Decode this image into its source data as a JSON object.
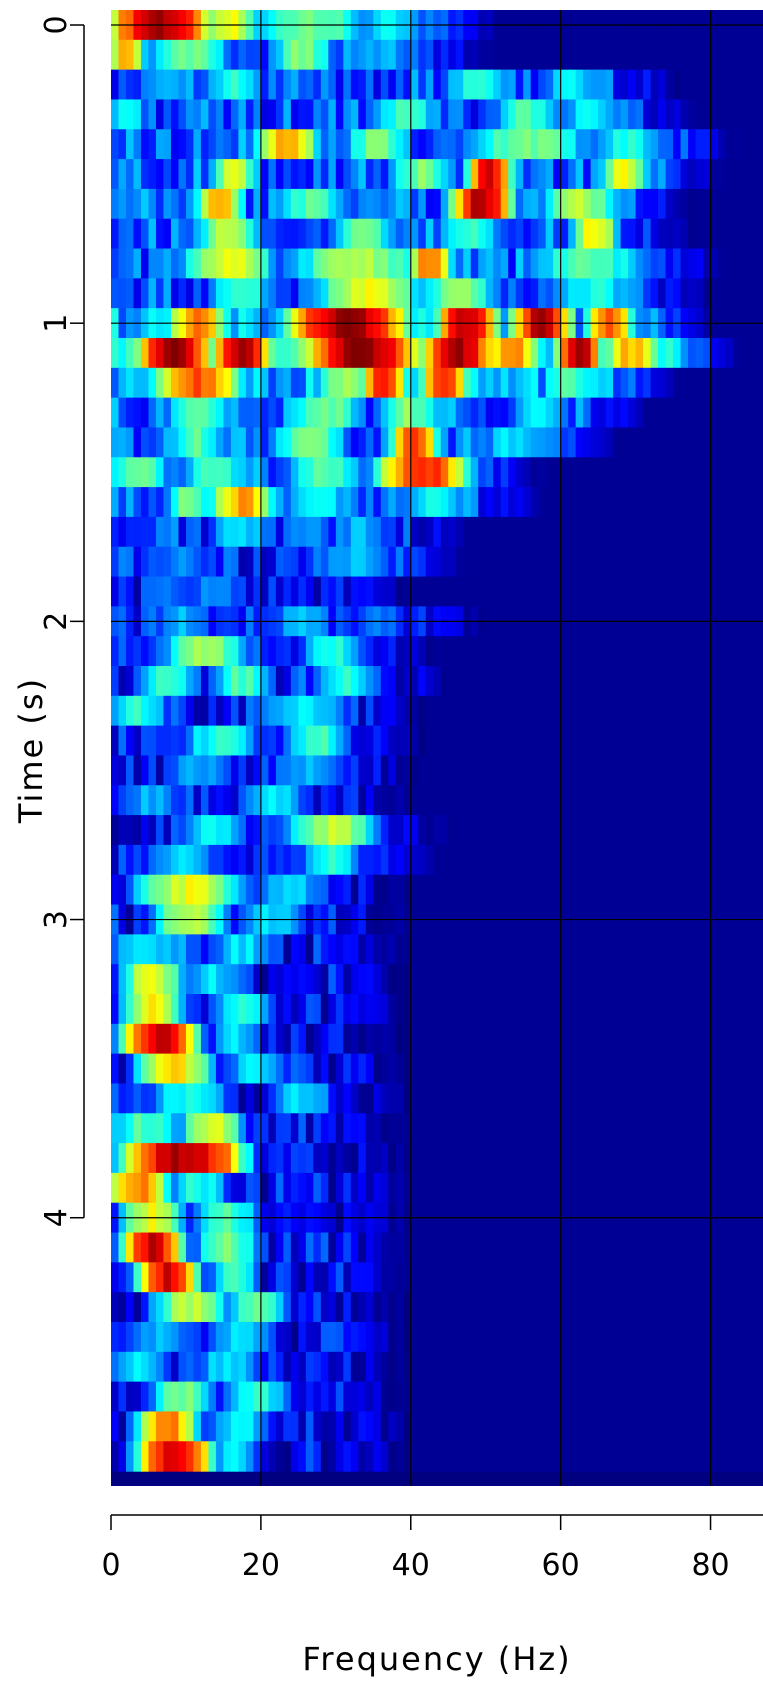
{
  "chart_data": {
    "type": "heatmap",
    "title": "",
    "xlabel": "Frequency (Hz)",
    "ylabel": "Time (s)",
    "xlim": [
      0,
      87
    ],
    "ylim": [
      0,
      4.95
    ],
    "y_inverted": true,
    "x_ticks": [
      0,
      20,
      40,
      60,
      80
    ],
    "y_ticks": [
      0,
      1,
      2,
      3,
      4
    ],
    "grid": true,
    "colormap": "jet",
    "colorscale_range": [
      0,
      1
    ],
    "colors": {
      "background": "#000080",
      "grid": "#000000"
    },
    "freq_bin_hz": 1,
    "time_rows": [
      {
        "t": 0.05,
        "peaks": [
          [
            0,
            12,
            0.97
          ],
          [
            13,
            18,
            0.6
          ],
          [
            20,
            32,
            0.5
          ],
          [
            33,
            40,
            0.35
          ]
        ],
        "base": 0.25
      },
      {
        "t": 0.15,
        "peaks": [
          [
            0,
            3,
            0.7
          ],
          [
            6,
            14,
            0.5
          ],
          [
            22,
            28,
            0.5
          ],
          [
            30,
            40,
            0.3
          ]
        ],
        "base": 0.2
      },
      {
        "t": 0.25,
        "peaks": [
          [
            4,
            10,
            0.3
          ],
          [
            14,
            18,
            0.4
          ],
          [
            45,
            52,
            0.4
          ],
          [
            58,
            64,
            0.35
          ]
        ],
        "base": 0.2
      },
      {
        "t": 0.35,
        "peaks": [
          [
            0,
            3,
            0.4
          ],
          [
            36,
            42,
            0.45
          ],
          [
            52,
            58,
            0.45
          ],
          [
            60,
            66,
            0.35
          ]
        ],
        "base": 0.2
      },
      {
        "t": 0.45,
        "peaks": [
          [
            20,
            26,
            0.7
          ],
          [
            32,
            38,
            0.5
          ],
          [
            48,
            62,
            0.5
          ],
          [
            65,
            72,
            0.4
          ]
        ],
        "base": 0.22
      },
      {
        "t": 0.55,
        "peaks": [
          [
            14,
            18,
            0.6
          ],
          [
            48,
            52,
            0.9
          ],
          [
            38,
            44,
            0.5
          ],
          [
            66,
            70,
            0.6
          ]
        ],
        "base": 0.22
      },
      {
        "t": 0.65,
        "peaks": [
          [
            12,
            16,
            0.7
          ],
          [
            46,
            52,
            0.95
          ],
          [
            22,
            30,
            0.45
          ],
          [
            58,
            66,
            0.55
          ]
        ],
        "base": 0.22
      },
      {
        "t": 0.75,
        "peaks": [
          [
            12,
            18,
            0.55
          ],
          [
            30,
            36,
            0.5
          ],
          [
            62,
            66,
            0.65
          ],
          [
            44,
            50,
            0.45
          ]
        ],
        "base": 0.22
      },
      {
        "t": 0.85,
        "peaks": [
          [
            10,
            20,
            0.6
          ],
          [
            25,
            40,
            0.55
          ],
          [
            40,
            44,
            0.75
          ],
          [
            56,
            70,
            0.45
          ]
        ],
        "base": 0.22
      },
      {
        "t": 0.95,
        "peaks": [
          [
            14,
            20,
            0.45
          ],
          [
            28,
            40,
            0.6
          ],
          [
            42,
            50,
            0.5
          ],
          [
            60,
            68,
            0.4
          ]
        ],
        "base": 0.2
      },
      {
        "t": 1.05,
        "peaks": [
          [
            8,
            14,
            0.75
          ],
          [
            24,
            38,
            0.98
          ],
          [
            44,
            50,
            0.95
          ],
          [
            54,
            60,
            0.95
          ],
          [
            64,
            68,
            0.8
          ]
        ],
        "base": 0.3
      },
      {
        "t": 1.15,
        "peaks": [
          [
            4,
            12,
            0.98
          ],
          [
            14,
            20,
            0.95
          ],
          [
            26,
            40,
            0.98
          ],
          [
            42,
            50,
            0.95
          ],
          [
            50,
            56,
            0.75
          ],
          [
            60,
            64,
            0.95
          ],
          [
            66,
            72,
            0.7
          ]
        ],
        "base": 0.35
      },
      {
        "t": 1.25,
        "peaks": [
          [
            6,
            16,
            0.8
          ],
          [
            28,
            34,
            0.55
          ],
          [
            34,
            38,
            0.85
          ],
          [
            42,
            46,
            0.85
          ],
          [
            58,
            64,
            0.45
          ]
        ],
        "base": 0.28
      },
      {
        "t": 1.35,
        "peaks": [
          [
            8,
            14,
            0.5
          ],
          [
            24,
            32,
            0.5
          ],
          [
            36,
            42,
            0.5
          ],
          [
            54,
            60,
            0.35
          ]
        ],
        "base": 0.22
      },
      {
        "t": 1.45,
        "peaks": [
          [
            8,
            14,
            0.45
          ],
          [
            22,
            30,
            0.5
          ],
          [
            38,
            42,
            0.85
          ],
          [
            50,
            56,
            0.35
          ]
        ],
        "base": 0.22
      },
      {
        "t": 1.55,
        "peaks": [
          [
            0,
            6,
            0.5
          ],
          [
            10,
            16,
            0.45
          ],
          [
            36,
            46,
            0.85
          ],
          [
            24,
            32,
            0.45
          ]
        ],
        "base": 0.22
      },
      {
        "t": 1.65,
        "peaks": [
          [
            14,
            20,
            0.72
          ],
          [
            8,
            12,
            0.5
          ],
          [
            24,
            30,
            0.4
          ],
          [
            40,
            46,
            0.4
          ]
        ],
        "base": 0.2
      },
      {
        "t": 1.75,
        "peaks": [
          [
            14,
            20,
            0.35
          ],
          [
            30,
            36,
            0.3
          ]
        ],
        "base": 0.17
      },
      {
        "t": 1.85,
        "peaks": [
          [
            4,
            12,
            0.25
          ],
          [
            28,
            36,
            0.3
          ]
        ],
        "base": 0.15
      },
      {
        "t": 1.95,
        "peaks": [
          [
            10,
            16,
            0.25
          ]
        ],
        "base": 0.14
      },
      {
        "t": 2.05,
        "peaks": [
          [
            6,
            12,
            0.3
          ],
          [
            22,
            28,
            0.3
          ],
          [
            32,
            38,
            0.25
          ]
        ],
        "base": 0.15
      },
      {
        "t": 2.15,
        "peaks": [
          [
            8,
            16,
            0.55
          ],
          [
            26,
            32,
            0.4
          ]
        ],
        "base": 0.15
      },
      {
        "t": 2.25,
        "peaks": [
          [
            4,
            10,
            0.45
          ],
          [
            14,
            20,
            0.45
          ],
          [
            28,
            34,
            0.4
          ]
        ],
        "base": 0.15
      },
      {
        "t": 2.35,
        "peaks": [
          [
            0,
            6,
            0.4
          ],
          [
            20,
            30,
            0.35
          ]
        ],
        "base": 0.14
      },
      {
        "t": 2.45,
        "peaks": [
          [
            10,
            18,
            0.4
          ],
          [
            24,
            30,
            0.45
          ]
        ],
        "base": 0.14
      },
      {
        "t": 2.55,
        "peaks": [
          [
            8,
            14,
            0.3
          ],
          [
            22,
            30,
            0.3
          ]
        ],
        "base": 0.13
      },
      {
        "t": 2.65,
        "peaks": [
          [
            2,
            8,
            0.3
          ],
          [
            18,
            24,
            0.35
          ]
        ],
        "base": 0.13
      },
      {
        "t": 2.75,
        "peaks": [
          [
            10,
            16,
            0.4
          ],
          [
            24,
            34,
            0.55
          ]
        ],
        "base": 0.13
      },
      {
        "t": 2.85,
        "peaks": [
          [
            6,
            12,
            0.35
          ],
          [
            26,
            32,
            0.4
          ]
        ],
        "base": 0.13
      },
      {
        "t": 2.95,
        "peaks": [
          [
            4,
            16,
            0.6
          ],
          [
            20,
            26,
            0.35
          ]
        ],
        "base": 0.13
      },
      {
        "t": 3.05,
        "peaks": [
          [
            6,
            14,
            0.55
          ],
          [
            18,
            24,
            0.35
          ]
        ],
        "base": 0.13
      },
      {
        "t": 3.15,
        "peaks": [
          [
            0,
            10,
            0.35
          ],
          [
            14,
            20,
            0.35
          ]
        ],
        "base": 0.12
      },
      {
        "t": 3.25,
        "peaks": [
          [
            2,
            8,
            0.6
          ],
          [
            10,
            16,
            0.35
          ]
        ],
        "base": 0.12
      },
      {
        "t": 3.35,
        "peaks": [
          [
            2,
            8,
            0.62
          ],
          [
            14,
            20,
            0.4
          ]
        ],
        "base": 0.12
      },
      {
        "t": 3.45,
        "peaks": [
          [
            2,
            10,
            0.92
          ],
          [
            14,
            18,
            0.35
          ]
        ],
        "base": 0.12
      },
      {
        "t": 3.55,
        "peaks": [
          [
            4,
            12,
            0.65
          ],
          [
            16,
            22,
            0.35
          ]
        ],
        "base": 0.12
      },
      {
        "t": 3.65,
        "peaks": [
          [
            6,
            14,
            0.4
          ],
          [
            22,
            28,
            0.35
          ]
        ],
        "base": 0.12
      },
      {
        "t": 3.75,
        "peaks": [
          [
            0,
            8,
            0.45
          ],
          [
            10,
            16,
            0.6
          ]
        ],
        "base": 0.12
      },
      {
        "t": 3.85,
        "peaks": [
          [
            2,
            16,
            0.95
          ],
          [
            10,
            16,
            0.85
          ]
        ],
        "base": 0.12
      },
      {
        "t": 3.95,
        "peaks": [
          [
            0,
            6,
            0.75
          ],
          [
            8,
            14,
            0.4
          ]
        ],
        "base": 0.12
      },
      {
        "t": 4.05,
        "peaks": [
          [
            2,
            8,
            0.6
          ],
          [
            12,
            18,
            0.45
          ]
        ],
        "base": 0.12
      },
      {
        "t": 4.15,
        "peaks": [
          [
            2,
            8,
            0.92
          ],
          [
            12,
            18,
            0.5
          ]
        ],
        "base": 0.12
      },
      {
        "t": 4.25,
        "peaks": [
          [
            4,
            10,
            0.9
          ],
          [
            14,
            18,
            0.45
          ]
        ],
        "base": 0.12
      },
      {
        "t": 4.35,
        "peaks": [
          [
            6,
            14,
            0.55
          ],
          [
            16,
            22,
            0.45
          ]
        ],
        "base": 0.12
      },
      {
        "t": 4.45,
        "peaks": [
          [
            2,
            10,
            0.3
          ],
          [
            14,
            20,
            0.35
          ]
        ],
        "base": 0.12
      },
      {
        "t": 4.55,
        "peaks": [
          [
            0,
            6,
            0.35
          ],
          [
            12,
            18,
            0.35
          ]
        ],
        "base": 0.12
      },
      {
        "t": 4.65,
        "peaks": [
          [
            6,
            12,
            0.5
          ],
          [
            16,
            22,
            0.4
          ]
        ],
        "base": 0.12
      },
      {
        "t": 4.75,
        "peaks": [
          [
            4,
            10,
            0.75
          ],
          [
            14,
            20,
            0.35
          ]
        ],
        "base": 0.12
      },
      {
        "t": 4.85,
        "peaks": [
          [
            4,
            12,
            0.92
          ],
          [
            14,
            18,
            0.35
          ]
        ],
        "base": 0.12
      }
    ]
  }
}
